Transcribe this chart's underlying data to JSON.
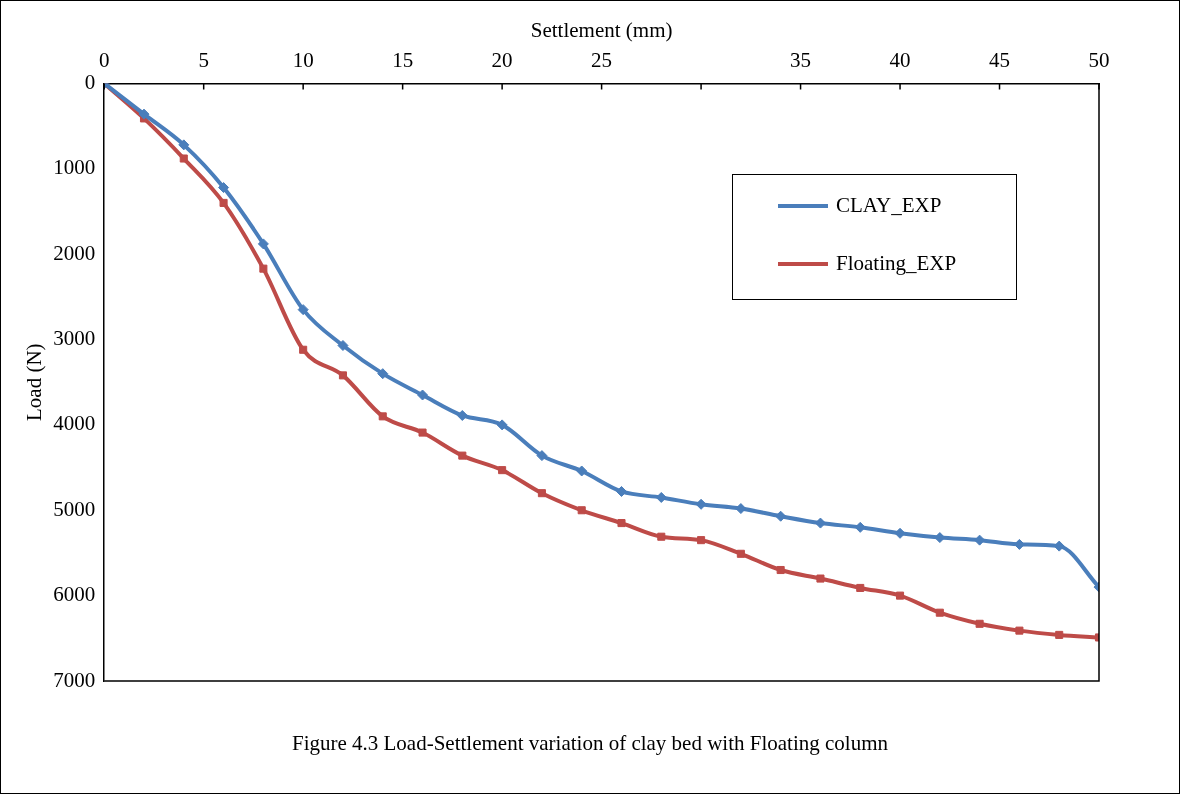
{
  "chart_data": {
    "type": "line",
    "xlabel": "Settlement (mm)",
    "ylabel": "Load (N)",
    "annotations": [
      "Figure 4.3 Load-Settlement variation of clay bed with Floating column"
    ],
    "x": [
      0,
      2,
      4,
      6,
      8,
      10,
      12,
      14,
      16,
      18,
      20,
      22,
      24,
      26,
      28,
      30,
      32,
      34,
      36,
      38,
      40,
      42,
      44,
      46,
      48,
      50
    ],
    "xlim": [
      0,
      50
    ],
    "xticks": [
      0,
      5,
      10,
      15,
      20,
      25,
      {
        "value": 30,
        "label": null
      },
      35,
      40,
      45,
      50
    ],
    "ylim": [
      7000,
      0
    ],
    "yticks": [
      0,
      1000,
      2000,
      3000,
      4000,
      5000,
      6000,
      7000
    ],
    "grid": false,
    "legend": "top right",
    "line_style": "solid",
    "series": [
      {
        "name": "CLAY_EXP",
        "color": "#4a7ebb",
        "marker": "diamond",
        "values": [
          0,
          360,
          720,
          1220,
          1880,
          2650,
          3070,
          3400,
          3650,
          3890,
          4000,
          4360,
          4540,
          4780,
          4850,
          4930,
          4980,
          5070,
          5150,
          5200,
          5270,
          5320,
          5350,
          5400,
          5420,
          5900
        ]
      },
      {
        "name": "Floating_EXP",
        "color": "#be4b48",
        "marker": "square",
        "values": [
          0,
          410,
          880,
          1400,
          2170,
          3120,
          3420,
          3900,
          4090,
          4360,
          4530,
          4800,
          5000,
          5150,
          5310,
          5350,
          5510,
          5700,
          5800,
          5910,
          6000,
          6200,
          6330,
          6410,
          6460,
          6490
        ]
      }
    ]
  }
}
